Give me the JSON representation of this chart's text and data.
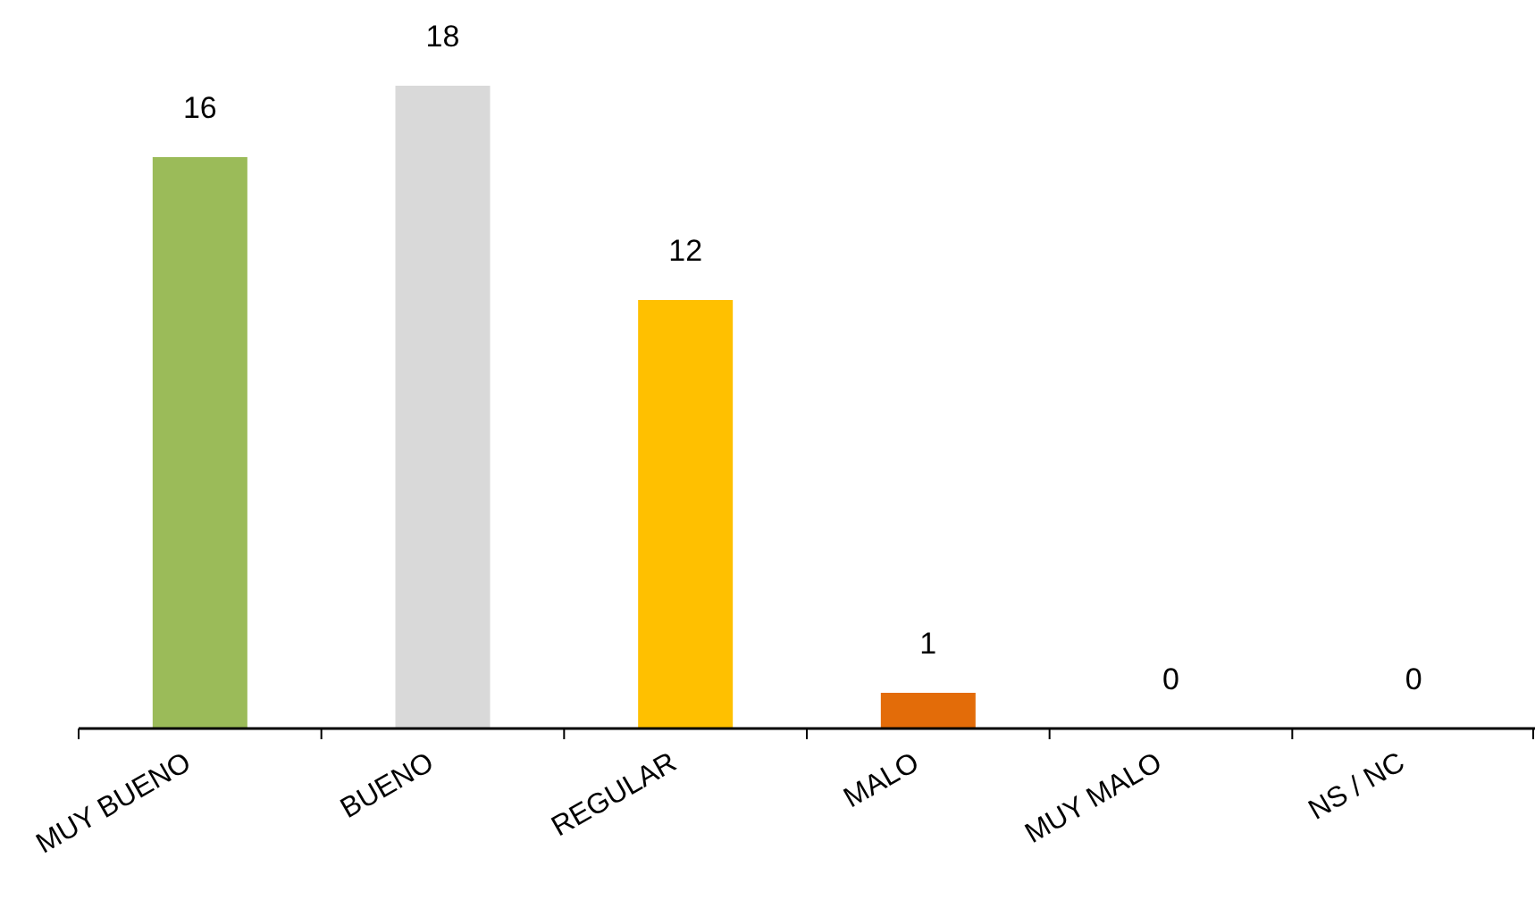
{
  "chart_data": {
    "type": "bar",
    "categories": [
      "MUY BUENO",
      "BUENO",
      "REGULAR",
      "MALO",
      "MUY MALO",
      "NS / NC"
    ],
    "values": [
      16,
      18,
      12,
      1,
      0,
      0
    ],
    "colors": [
      "#9bbb59",
      "#d9d9d9",
      "#ffc000",
      "#e36c09",
      "#a5a5a5",
      "#a5a5a5"
    ],
    "data_labels": true
  }
}
